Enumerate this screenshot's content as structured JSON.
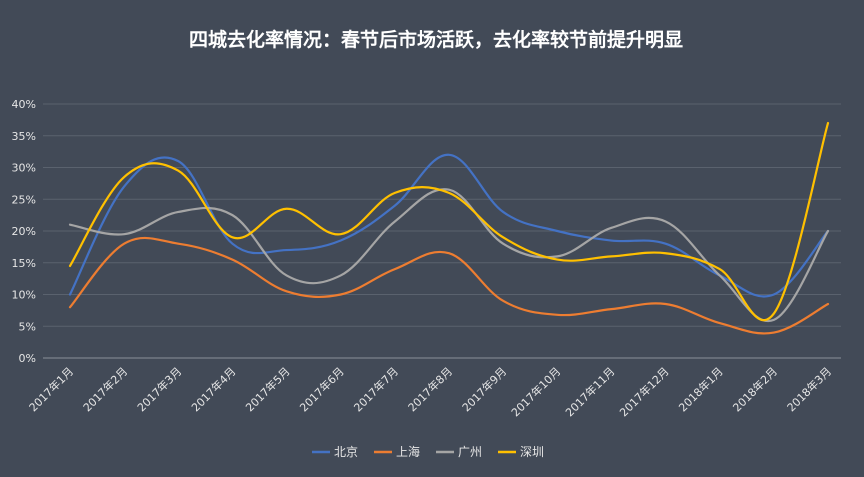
{
  "chart_data": {
    "type": "line",
    "title": "四城去化率情况：春节后市场活跃，去化率较节前提升明显",
    "xlabel": "",
    "ylabel": "",
    "ylim": [
      0,
      0.4
    ],
    "yticks": [
      0,
      0.05,
      0.1,
      0.15,
      0.2,
      0.25,
      0.3,
      0.35,
      0.4
    ],
    "ytick_labels": [
      "0%",
      "5%",
      "10%",
      "15%",
      "20%",
      "25%",
      "30%",
      "35%",
      "40%"
    ],
    "categories": [
      "2017年1月",
      "2017年2月",
      "2017年3月",
      "2017年4月",
      "2017年5月",
      "2017年6月",
      "2017年7月",
      "2017年8月",
      "2017年9月",
      "2017年10月",
      "2017年11月",
      "2017年12月",
      "2018年1月",
      "2018年2月",
      "2018年3月"
    ],
    "grid": true,
    "legend_position": "bottom",
    "series": [
      {
        "name": "北京",
        "color": "#4472c4",
        "values": [
          0.1,
          0.27,
          0.31,
          0.18,
          0.17,
          0.185,
          0.24,
          0.32,
          0.23,
          0.2,
          0.185,
          0.18,
          0.13,
          0.1,
          0.2
        ]
      },
      {
        "name": "上海",
        "color": "#ed7d31",
        "values": [
          0.08,
          0.18,
          0.18,
          0.155,
          0.105,
          0.1,
          0.14,
          0.165,
          0.09,
          0.068,
          0.077,
          0.085,
          0.055,
          0.04,
          0.085
        ]
      },
      {
        "name": "广州",
        "color": "#a5a5a5",
        "values": [
          0.21,
          0.195,
          0.23,
          0.225,
          0.13,
          0.13,
          0.215,
          0.265,
          0.18,
          0.16,
          0.205,
          0.215,
          0.13,
          0.06,
          0.2
        ]
      },
      {
        "name": "深圳",
        "color": "#ffc000",
        "values": [
          0.145,
          0.285,
          0.295,
          0.19,
          0.235,
          0.195,
          0.26,
          0.26,
          0.19,
          0.155,
          0.16,
          0.165,
          0.14,
          0.07,
          0.37
        ]
      }
    ]
  }
}
